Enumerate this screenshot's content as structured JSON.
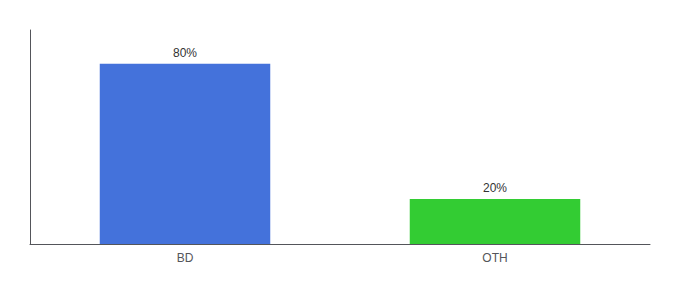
{
  "chart_data": {
    "type": "bar",
    "categories": [
      "BD",
      "OTH"
    ],
    "values": [
      80,
      20
    ],
    "value_labels": [
      "80%",
      "20%"
    ],
    "colors": [
      "#4472db",
      "#33cc33"
    ],
    "ylim": [
      0,
      95
    ],
    "yticks": [],
    "grid": false,
    "tick_labels": "x",
    "data_labels": true
  }
}
